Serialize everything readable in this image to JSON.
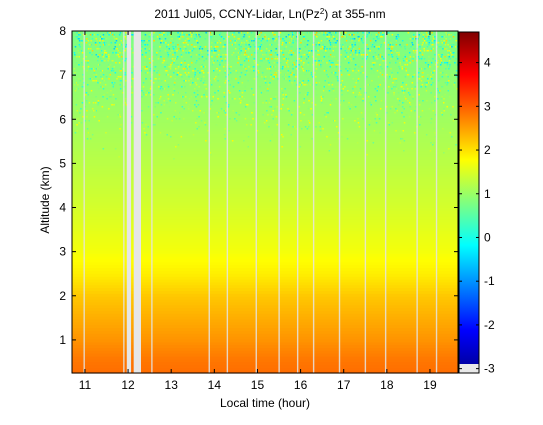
{
  "chart_data": {
    "type": "heatmap",
    "title_main": "2011 Jul05, CCNY-Lidar, Ln(Pz",
    "title_sup": "2",
    "title_tail": ") at 355-nm",
    "xlabel": "Local time (hour)",
    "ylabel": "Altitude (km)",
    "x_range": [
      10.7,
      19.65
    ],
    "y_range": [
      0.25,
      8.0
    ],
    "x_ticks": [
      11,
      12,
      13,
      14,
      15,
      16,
      17,
      18,
      19
    ],
    "y_ticks": [
      1,
      2,
      3,
      4,
      5,
      6,
      7,
      8
    ],
    "colorbar": {
      "range": [
        -3.1,
        4.7
      ],
      "ticks": [
        -3,
        -2,
        -1,
        0,
        1,
        2,
        3,
        4
      ],
      "colormap": "jet"
    },
    "value_profile": [
      {
        "alt": 0.25,
        "value": 2.9
      },
      {
        "alt": 0.6,
        "value": 2.8
      },
      {
        "alt": 1.0,
        "value": 2.6
      },
      {
        "alt": 1.5,
        "value": 2.4
      },
      {
        "alt": 2.0,
        "value": 2.2
      },
      {
        "alt": 2.5,
        "value": 1.9
      },
      {
        "alt": 3.0,
        "value": 1.7
      },
      {
        "alt": 4.0,
        "value": 1.45
      },
      {
        "alt": 5.0,
        "value": 1.25
      },
      {
        "alt": 6.0,
        "value": 1.05
      },
      {
        "alt": 7.0,
        "value": 0.9
      },
      {
        "alt": 8.0,
        "value": 0.75
      }
    ],
    "missing_data_periods": [
      {
        "start": 11.97,
        "end": 12.07
      },
      {
        "start": 12.13,
        "end": 12.3
      }
    ],
    "profile_gaps": [
      10.98,
      11.9,
      12.55,
      13.88,
      14.3,
      14.97,
      15.5,
      15.93,
      16.3,
      16.9,
      17.5,
      17.97,
      18.7,
      19.15
    ]
  }
}
